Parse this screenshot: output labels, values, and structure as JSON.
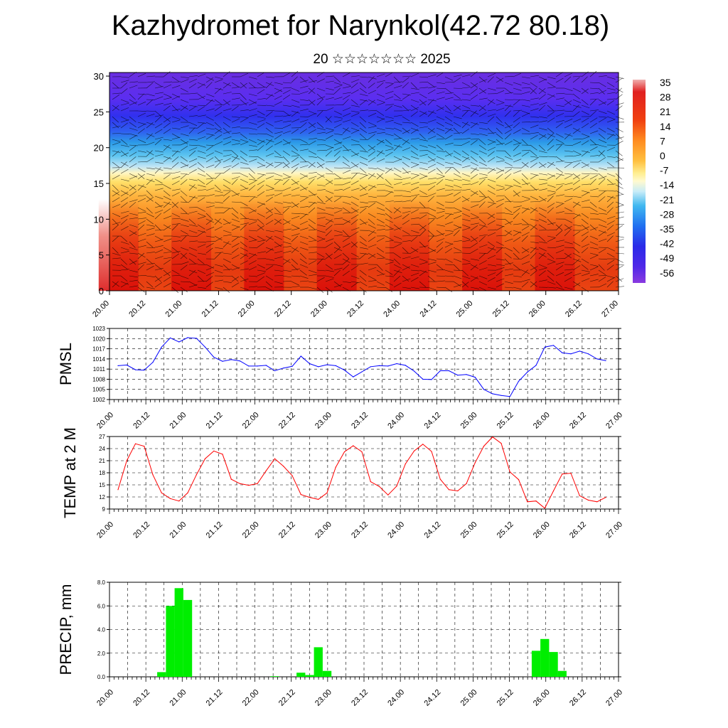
{
  "header": {
    "title": "Kazhydromet for Narynkol(42.72 80.18)",
    "subtitle": "20 ☆☆☆☆☆☆☆ 2025"
  },
  "time_ticks": [
    "20.00",
    "20.12",
    "21.00",
    "21.12",
    "22.00",
    "22.12",
    "23.00",
    "23.12",
    "24.00",
    "24.12",
    "25.00",
    "25.12",
    "26.00",
    "26.12",
    "27.00"
  ],
  "chart_data": [
    {
      "type": "heatmap",
      "title": "",
      "ylabel": "",
      "ylim": [
        0,
        30
      ],
      "y_ticks": [
        "0",
        "5",
        "10",
        "15",
        "20",
        "25",
        "30"
      ],
      "colorbar_labels": [
        "35",
        "28",
        "21",
        "14",
        "7",
        "0",
        "-7",
        "-14",
        "-21",
        "-28",
        "-35",
        "-42",
        "-49",
        "-56"
      ],
      "colors": {
        "cold": "#6a2ee0",
        "warm": "#d81010"
      }
    },
    {
      "type": "line",
      "ylabel": "PMSL",
      "ylim": [
        1002,
        1023
      ],
      "y_ticks": [
        "1002",
        "1005",
        "1008",
        "1011",
        "1014",
        "1017",
        "1020",
        "1023"
      ],
      "line_color": "#0000ff",
      "values": [
        1012,
        1012.2,
        1010.8,
        1010.7,
        1013,
        1017.5,
        1020.2,
        1019,
        1020.3,
        1020.1,
        1017.5,
        1014.5,
        1013.3,
        1013.8,
        1013.4,
        1011.9,
        1011.9,
        1012.1,
        1010.5,
        1011.3,
        1011.8,
        1014.8,
        1012.6,
        1011.7,
        1012.3,
        1012,
        1010.7,
        1008.7,
        1010.2,
        1011.7,
        1012,
        1011.9,
        1012.6,
        1012.1,
        1010.4,
        1008,
        1007.9,
        1010.5,
        1010.5,
        1009.2,
        1009.4,
        1008.6,
        1005,
        1003.7,
        1003.2,
        1002.9,
        1007.4,
        1010.1,
        1012.1,
        1017.5,
        1018,
        1015.8,
        1015.5,
        1016.3,
        1015.5,
        1014,
        1013.5
      ]
    },
    {
      "type": "line",
      "ylabel": "TEMP at 2 M",
      "ylim": [
        9,
        27
      ],
      "y_ticks": [
        "9",
        "12",
        "15",
        "18",
        "21",
        "24",
        "27"
      ],
      "line_color": "#ff0000",
      "values": [
        13.8,
        21,
        25.2,
        24.6,
        17.5,
        13,
        11.6,
        11,
        13,
        17.5,
        21.5,
        23.4,
        22.6,
        16.4,
        15.3,
        14.9,
        15.3,
        18.5,
        21.5,
        19.6,
        17.3,
        12.6,
        11.9,
        11.4,
        13,
        19.4,
        23.2,
        24.7,
        23.2,
        15.8,
        14.6,
        12.5,
        14.7,
        20.2,
        23.4,
        25.1,
        23.3,
        16.4,
        13.8,
        13.5,
        15.3,
        20.5,
        24.6,
        26.9,
        25.3,
        18.2,
        16.3,
        10.8,
        11,
        9.2,
        13.5,
        17.7,
        17.9,
        12.3,
        11.2,
        10.8,
        11.9
      ]
    },
    {
      "type": "bar",
      "ylabel": "PRECIP, mm",
      "ylim": [
        0,
        8
      ],
      "y_ticks": [
        "0.0",
        "2.0",
        "4.0",
        "6.0",
        "8.0"
      ],
      "bar_color": "#00ee00",
      "values": [
        0,
        0,
        0,
        0,
        0,
        0.4,
        6,
        7.5,
        6.5,
        0,
        0,
        0,
        0,
        0,
        0,
        0,
        0,
        0,
        0.05,
        0,
        0,
        0.35,
        0.15,
        2.5,
        0.5,
        0,
        0,
        0,
        0,
        0,
        0,
        0,
        0,
        0,
        0,
        0,
        0,
        0,
        0,
        0,
        0,
        0,
        0,
        0,
        0,
        0,
        0,
        0,
        2.2,
        3.2,
        2.1,
        0.5,
        0,
        0,
        0,
        0,
        0
      ]
    }
  ]
}
